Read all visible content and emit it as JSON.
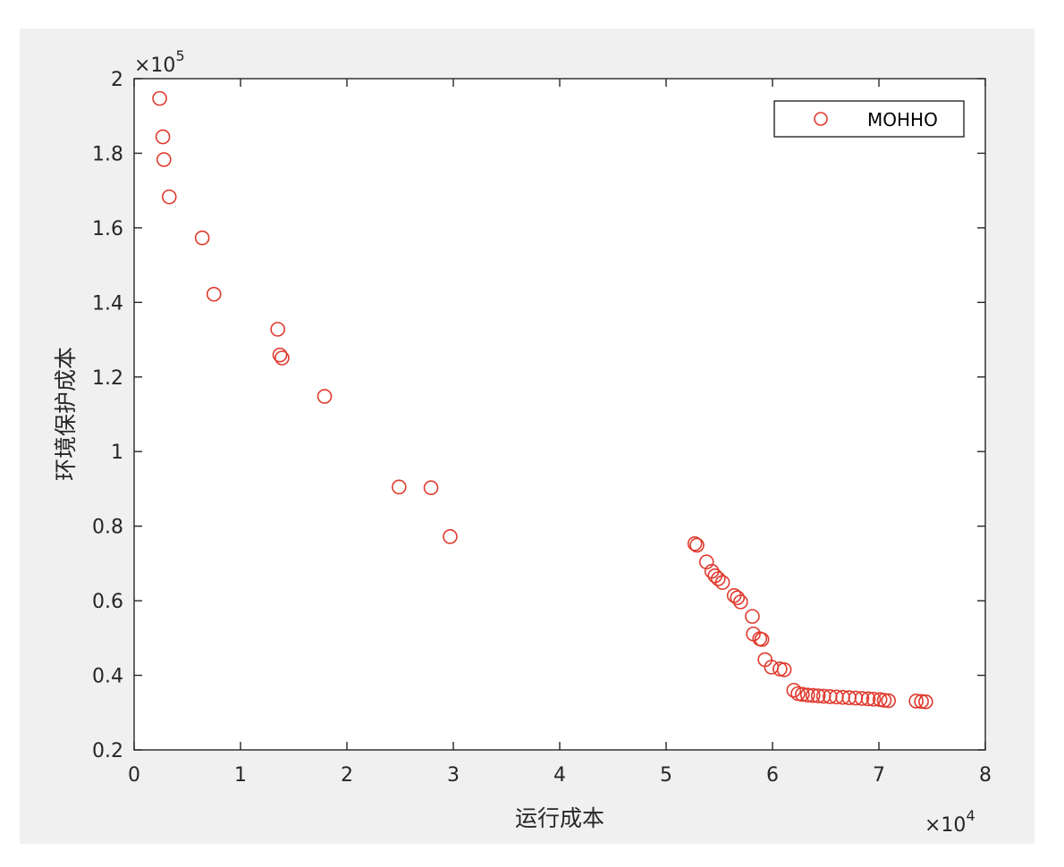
{
  "colors": {
    "marker": "#e03a2e",
    "axis": "#262626",
    "plot_background": "#ffffff",
    "figure_background": "#f0f0f0"
  },
  "chart_data": {
    "type": "scatter",
    "title": "",
    "xlabel": "运行成本",
    "ylabel": "环境保护成本",
    "x_exponent_label": "×10",
    "x_exponent_power": "4",
    "y_exponent_label": "×10",
    "y_exponent_power": "5",
    "xlim": [
      0,
      80000
    ],
    "ylim": [
      20000,
      200000
    ],
    "x_ticks": [
      0,
      10000,
      20000,
      30000,
      40000,
      50000,
      60000,
      70000,
      80000
    ],
    "x_tick_labels": [
      "0",
      "1",
      "2",
      "3",
      "4",
      "5",
      "6",
      "7",
      "8"
    ],
    "y_ticks": [
      20000,
      40000,
      60000,
      80000,
      100000,
      120000,
      140000,
      160000,
      180000,
      200000
    ],
    "y_tick_labels": [
      "0.2",
      "0.4",
      "0.6",
      "0.8",
      "1",
      "1.2",
      "1.4",
      "1.6",
      "1.8",
      "2"
    ],
    "grid": false,
    "legend_position": "top-right",
    "series": [
      {
        "name": "MOHHO",
        "marker": "circle-open",
        "points": [
          [
            2400,
            194700
          ],
          [
            2700,
            184400
          ],
          [
            2800,
            178300
          ],
          [
            3300,
            168300
          ],
          [
            6400,
            157300
          ],
          [
            7500,
            142200
          ],
          [
            13500,
            132800
          ],
          [
            13700,
            125900
          ],
          [
            13900,
            125100
          ],
          [
            17900,
            114800
          ],
          [
            24900,
            90500
          ],
          [
            27900,
            90300
          ],
          [
            29700,
            77200
          ],
          [
            52700,
            75300
          ],
          [
            52900,
            74900
          ],
          [
            53800,
            70400
          ],
          [
            54300,
            67900
          ],
          [
            54600,
            66700
          ],
          [
            54900,
            65900
          ],
          [
            55300,
            64900
          ],
          [
            56400,
            61400
          ],
          [
            56700,
            60800
          ],
          [
            57000,
            59700
          ],
          [
            58100,
            55800
          ],
          [
            58200,
            51100
          ],
          [
            58800,
            49800
          ],
          [
            59000,
            49600
          ],
          [
            59300,
            44200
          ],
          [
            59900,
            42200
          ],
          [
            60700,
            41700
          ],
          [
            61100,
            41500
          ],
          [
            62000,
            36000
          ],
          [
            62400,
            35100
          ],
          [
            62800,
            34900
          ],
          [
            63300,
            34700
          ],
          [
            63800,
            34600
          ],
          [
            64300,
            34500
          ],
          [
            64800,
            34400
          ],
          [
            65400,
            34300
          ],
          [
            66000,
            34200
          ],
          [
            66600,
            34100
          ],
          [
            67200,
            34000
          ],
          [
            67800,
            33900
          ],
          [
            68400,
            33800
          ],
          [
            69000,
            33700
          ],
          [
            69500,
            33600
          ],
          [
            70100,
            33500
          ],
          [
            70500,
            33300
          ],
          [
            70900,
            33200
          ],
          [
            73500,
            33100
          ],
          [
            74000,
            33000
          ],
          [
            74400,
            32900
          ]
        ]
      }
    ]
  }
}
